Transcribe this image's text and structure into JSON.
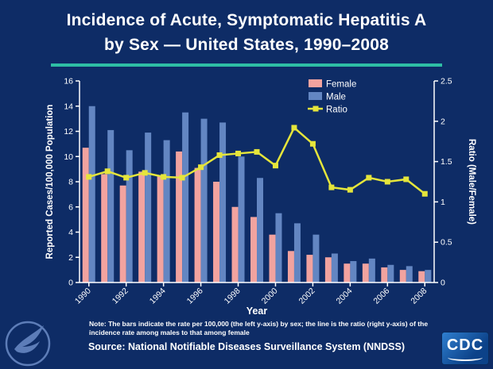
{
  "slide": {
    "title_line1": "Incidence of Acute, Symptomatic Hepatitis A",
    "title_line2": "by Sex — United States, 1990–2008",
    "note_line1": "Note:  The bars indicate the rate per 100,000 (the left y-axis) by sex; the line is the ratio (right y-axis) of the",
    "note_line2": "incidence rate among males to that among female",
    "source": "Source: National Notifiable Diseases Surveillance System (NNDSS)",
    "cdc_logo_text": "CDC"
  },
  "colors": {
    "background": "#0e2c66",
    "divider": "#2ebfa5",
    "axis": "#ffffff",
    "female": "#f2a39f",
    "male": "#6386c2",
    "ratio": "#e5e53b"
  },
  "chart_data": {
    "type": "bar",
    "title": "Incidence of Acute, Symptomatic Hepatitis A by Sex — United States, 1990–2008",
    "categories": [
      "1990",
      "1991",
      "1992",
      "1993",
      "1994",
      "1995",
      "1996",
      "1997",
      "1998",
      "1999",
      "2000",
      "2001",
      "2002",
      "2003",
      "2004",
      "2005",
      "2006",
      "2007",
      "2008"
    ],
    "series": [
      {
        "name": "Female",
        "type": "bar",
        "axis": "left",
        "color": "#f2a39f",
        "values": [
          10.7,
          8.6,
          7.7,
          8.8,
          8.5,
          10.4,
          9.1,
          8.0,
          6.0,
          5.2,
          3.8,
          2.5,
          2.2,
          2.0,
          1.5,
          1.5,
          1.2,
          1.0,
          0.9
        ]
      },
      {
        "name": "Male",
        "type": "bar",
        "axis": "left",
        "color": "#6386c2",
        "values": [
          14.0,
          12.1,
          10.5,
          11.9,
          11.3,
          13.5,
          13.0,
          12.7,
          10.0,
          8.3,
          5.5,
          4.7,
          3.8,
          2.3,
          1.7,
          1.9,
          1.4,
          1.3,
          1.0
        ]
      },
      {
        "name": "Ratio",
        "type": "line",
        "axis": "right",
        "color": "#e5e53b",
        "values": [
          1.31,
          1.38,
          1.3,
          1.36,
          1.31,
          1.3,
          1.43,
          1.58,
          1.6,
          1.62,
          1.45,
          1.92,
          1.72,
          1.18,
          1.15,
          1.3,
          1.25,
          1.28,
          1.1
        ]
      }
    ],
    "left_axis": {
      "label": "Reported Cases/100,000 Population",
      "min": 0,
      "max": 16,
      "ticks": [
        0,
        2,
        4,
        6,
        8,
        10,
        12,
        14,
        16
      ]
    },
    "right_axis": {
      "label": "Ratio (Male/Female)",
      "min": 0,
      "max": 2.5,
      "ticks": [
        0,
        0.5,
        1,
        1.5,
        2,
        2.5
      ]
    },
    "x_axis": {
      "label": "Year",
      "tick_labels": [
        "1990",
        "1992",
        "1994",
        "1996",
        "1998",
        "2000",
        "2002",
        "2004",
        "2006",
        "2008"
      ]
    },
    "legend": [
      "Female",
      "Male",
      "Ratio"
    ],
    "legend_position": "top-right-inside",
    "grid": false
  }
}
